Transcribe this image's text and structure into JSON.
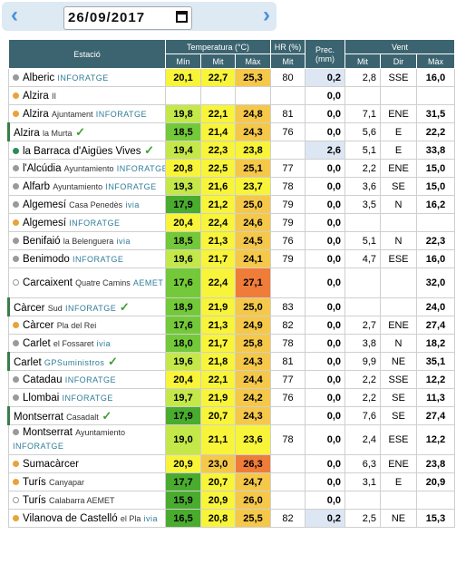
{
  "date": "26/09/2017",
  "nav": {
    "prev": "‹",
    "next": "›"
  },
  "headers": {
    "station": "Estació",
    "temp": "Temperatura (°C)",
    "hr": "HR (%)",
    "prec": "Prec. (mm)",
    "wind": "Vent",
    "min": "Mín",
    "mit": "Mit",
    "max": "Màx",
    "hr_mit": "Mit",
    "w_mit": "Mit",
    "w_dir": "Dir",
    "w_max": "Màx"
  },
  "colors": {
    "red": "#f07c3a",
    "orange": "#f5c84a",
    "yellow": "#f8f43a",
    "lime": "#c4e84a",
    "green": "#74c93a",
    "dkgreen": "#4aac2f"
  },
  "rows": [
    {
      "name": "Alberic",
      "sub": "",
      "tag": "INFORATGE",
      "check": false,
      "dot": "gray",
      "min": "20,1",
      "mit": "22,7",
      "max": "25,3",
      "hr": "80",
      "prec": "0,2",
      "vmit": "2,8",
      "dir": "SSE",
      "vmax": "16,0",
      "cmin": "yellow",
      "cmit": "yellow",
      "cmax": "orange",
      "blue": true
    },
    {
      "name": "Alzira",
      "sub": "II",
      "tag": "",
      "check": false,
      "dot": "orange",
      "min": "",
      "mit": "",
      "max": "",
      "hr": "",
      "prec": "0,0",
      "vmit": "",
      "dir": "",
      "vmax": "",
      "cmin": "",
      "cmit": "",
      "cmax": "",
      "blue": false
    },
    {
      "name": "Alzira",
      "sub": "Ajuntament",
      "tag": "INFORATGE",
      "check": false,
      "dot": "orange",
      "min": "19,8",
      "mit": "22,1",
      "max": "24,8",
      "hr": "81",
      "prec": "0,0",
      "vmit": "7,1",
      "dir": "ENE",
      "vmax": "31,5",
      "cmin": "lime",
      "cmit": "yellow",
      "cmax": "orange",
      "blue": false
    },
    {
      "name": "Alzira",
      "sub": "la Murta",
      "tag": "",
      "check": true,
      "dot": "",
      "min": "18,5",
      "mit": "21,4",
      "max": "24,3",
      "hr": "76",
      "prec": "0,0",
      "vmit": "5,6",
      "dir": "E",
      "vmax": "22,2",
      "cmin": "green",
      "cmit": "yellow",
      "cmax": "orange",
      "blue": false,
      "lb": true
    },
    {
      "name": "la Barraca d'Aigües Vives",
      "sub": "",
      "tag": "",
      "check": true,
      "dot": "green",
      "min": "19,4",
      "mit": "22,3",
      "max": "23,8",
      "hr": "",
      "prec": "2,6",
      "vmit": "5,1",
      "dir": "E",
      "vmax": "33,8",
      "cmin": "lime",
      "cmit": "yellow",
      "cmax": "yellow",
      "blue": true
    },
    {
      "name": "l'Alcúdia",
      "sub": "Ayuntamiento",
      "tag": "INFORATGE",
      "check": false,
      "dot": "gray",
      "min": "20,8",
      "mit": "22,5",
      "max": "25,1",
      "hr": "77",
      "prec": "0,0",
      "vmit": "2,2",
      "dir": "ENE",
      "vmax": "15,0",
      "cmin": "yellow",
      "cmit": "yellow",
      "cmax": "orange",
      "blue": false
    },
    {
      "name": "Alfarb",
      "sub": "Ayuntamiento",
      "tag": "INFORATGE",
      "check": false,
      "dot": "gray",
      "min": "19,3",
      "mit": "21,6",
      "max": "23,7",
      "hr": "78",
      "prec": "0,0",
      "vmit": "3,6",
      "dir": "SE",
      "vmax": "15,0",
      "cmin": "lime",
      "cmit": "yellow",
      "cmax": "yellow",
      "blue": false
    },
    {
      "name": "Algemesí",
      "sub": "Casa Penedès",
      "tag": "ivia",
      "check": false,
      "dot": "gray",
      "min": "17,9",
      "mit": "21,2",
      "max": "25,0",
      "hr": "79",
      "prec": "0,0",
      "vmit": "3,5",
      "dir": "N",
      "vmax": "16,2",
      "cmin": "dkgreen",
      "cmit": "yellow",
      "cmax": "orange",
      "blue": false
    },
    {
      "name": "Algemesí",
      "sub": "",
      "tag": "INFORATGE",
      "check": false,
      "dot": "orange",
      "min": "20,4",
      "mit": "22,4",
      "max": "24,6",
      "hr": "79",
      "prec": "0,0",
      "vmit": "",
      "dir": "",
      "vmax": "",
      "cmin": "yellow",
      "cmit": "yellow",
      "cmax": "orange",
      "blue": false
    },
    {
      "name": "Benifaió",
      "sub": "la Belenguera",
      "tag": "ivia",
      "check": false,
      "dot": "gray",
      "min": "18,5",
      "mit": "21,3",
      "max": "24,5",
      "hr": "76",
      "prec": "0,0",
      "vmit": "5,1",
      "dir": "N",
      "vmax": "22,3",
      "cmin": "green",
      "cmit": "yellow",
      "cmax": "orange",
      "blue": false
    },
    {
      "name": "Benimodo",
      "sub": "",
      "tag": "INFORATGE",
      "check": false,
      "dot": "gray",
      "min": "19,6",
      "mit": "21,7",
      "max": "24,1",
      "hr": "79",
      "prec": "0,0",
      "vmit": "4,7",
      "dir": "ESE",
      "vmax": "16,0",
      "cmin": "lime",
      "cmit": "yellow",
      "cmax": "orange",
      "blue": false
    },
    {
      "name": "Carcaixent",
      "sub": "Quatre Camins",
      "tag": "AEMET",
      "check": false,
      "dot": "hollow",
      "min": "17,6",
      "mit": "22,4",
      "max": "27,1",
      "hr": "",
      "prec": "0,0",
      "vmit": "",
      "dir": "",
      "vmax": "32,0",
      "cmin": "green",
      "cmit": "yellow",
      "cmax": "red",
      "blue": false,
      "tall": true
    },
    {
      "name": "Càrcer",
      "sub": "Sud",
      "tag": "INFORATGE",
      "check": true,
      "dot": "",
      "min": "18,9",
      "mit": "21,9",
      "max": "25,0",
      "hr": "83",
      "prec": "0,0",
      "vmit": "",
      "dir": "",
      "vmax": "24,0",
      "cmin": "green",
      "cmit": "yellow",
      "cmax": "orange",
      "blue": false,
      "lb": true
    },
    {
      "name": "Càrcer",
      "sub": "Pla del Rei",
      "tag": "",
      "check": false,
      "dot": "orange",
      "min": "17,6",
      "mit": "21,3",
      "max": "24,9",
      "hr": "82",
      "prec": "0,0",
      "vmit": "2,7",
      "dir": "ENE",
      "vmax": "27,4",
      "cmin": "green",
      "cmit": "yellow",
      "cmax": "orange",
      "blue": false
    },
    {
      "name": "Carlet",
      "sub": "el Fossaret",
      "tag": "ivia",
      "check": false,
      "dot": "gray",
      "min": "18,0",
      "mit": "21,7",
      "max": "25,8",
      "hr": "78",
      "prec": "0,0",
      "vmit": "3,8",
      "dir": "N",
      "vmax": "18,2",
      "cmin": "green",
      "cmit": "yellow",
      "cmax": "orange",
      "blue": false
    },
    {
      "name": "Carlet",
      "sub": "",
      "tag": "GPSuministros",
      "check": true,
      "dot": "",
      "min": "19,6",
      "mit": "21,8",
      "max": "24,3",
      "hr": "81",
      "prec": "0,0",
      "vmit": "9,9",
      "dir": "NE",
      "vmax": "35,1",
      "cmin": "lime",
      "cmit": "yellow",
      "cmax": "orange",
      "blue": false,
      "lb": true
    },
    {
      "name": "Catadau",
      "sub": "",
      "tag": "INFORATGE",
      "check": false,
      "dot": "gray",
      "min": "20,4",
      "mit": "22,1",
      "max": "24,4",
      "hr": "77",
      "prec": "0,0",
      "vmit": "2,2",
      "dir": "SSE",
      "vmax": "12,2",
      "cmin": "yellow",
      "cmit": "yellow",
      "cmax": "orange",
      "blue": false
    },
    {
      "name": "Llombai",
      "sub": "",
      "tag": "INFORATGE",
      "check": false,
      "dot": "gray",
      "min": "19,7",
      "mit": "21,9",
      "max": "24,2",
      "hr": "76",
      "prec": "0,0",
      "vmit": "2,2",
      "dir": "SE",
      "vmax": "11,3",
      "cmin": "lime",
      "cmit": "yellow",
      "cmax": "orange",
      "blue": false
    },
    {
      "name": "Montserrat",
      "sub": "Casadalt",
      "tag": "",
      "check": true,
      "dot": "",
      "min": "17,9",
      "mit": "20,7",
      "max": "24,3",
      "hr": "",
      "prec": "0,0",
      "vmit": "7,6",
      "dir": "SE",
      "vmax": "27,4",
      "cmin": "dkgreen",
      "cmit": "yellow",
      "cmax": "orange",
      "blue": false,
      "lb": true
    },
    {
      "name": "Montserrat",
      "sub": "Ayuntamiento",
      "tag": "INFORATGE",
      "check": false,
      "dot": "gray",
      "min": "19,0",
      "mit": "21,1",
      "max": "23,6",
      "hr": "78",
      "prec": "0,0",
      "vmit": "2,4",
      "dir": "ESE",
      "vmax": "12,2",
      "cmin": "lime",
      "cmit": "yellow",
      "cmax": "yellow",
      "blue": false,
      "tall": true
    },
    {
      "name": "Sumacàrcer",
      "sub": "",
      "tag": "",
      "check": false,
      "dot": "orange",
      "min": "20,9",
      "mit": "23,0",
      "max": "26,3",
      "hr": "",
      "prec": "0,0",
      "vmit": "6,3",
      "dir": "ENE",
      "vmax": "23,8",
      "cmin": "yellow",
      "cmit": "orange",
      "cmax": "red",
      "blue": false
    },
    {
      "name": "Turís",
      "sub": "Canyapar",
      "tag": "",
      "check": false,
      "dot": "orange",
      "min": "17,7",
      "mit": "20,7",
      "max": "24,7",
      "hr": "",
      "prec": "0,0",
      "vmit": "3,1",
      "dir": "E",
      "vmax": "20,9",
      "cmin": "dkgreen",
      "cmit": "yellow",
      "cmax": "orange",
      "blue": false
    },
    {
      "name": "Turís",
      "sub": "Calabarra AEMET",
      "tag": "",
      "check": false,
      "dot": "hollow",
      "min": "15,9",
      "mit": "20,9",
      "max": "26,0",
      "hr": "",
      "prec": "0,0",
      "vmit": "",
      "dir": "",
      "vmax": "",
      "cmin": "dkgreen",
      "cmit": "yellow",
      "cmax": "orange",
      "blue": false
    },
    {
      "name": "Vilanova de Castelló",
      "sub": "el Pla",
      "tag": "ivia",
      "check": false,
      "dot": "orange",
      "min": "16,5",
      "mit": "20,8",
      "max": "25,5",
      "hr": "82",
      "prec": "0,2",
      "vmit": "2,5",
      "dir": "NE",
      "vmax": "15,3",
      "cmin": "dkgreen",
      "cmit": "yellow",
      "cmax": "orange",
      "blue": true
    }
  ]
}
